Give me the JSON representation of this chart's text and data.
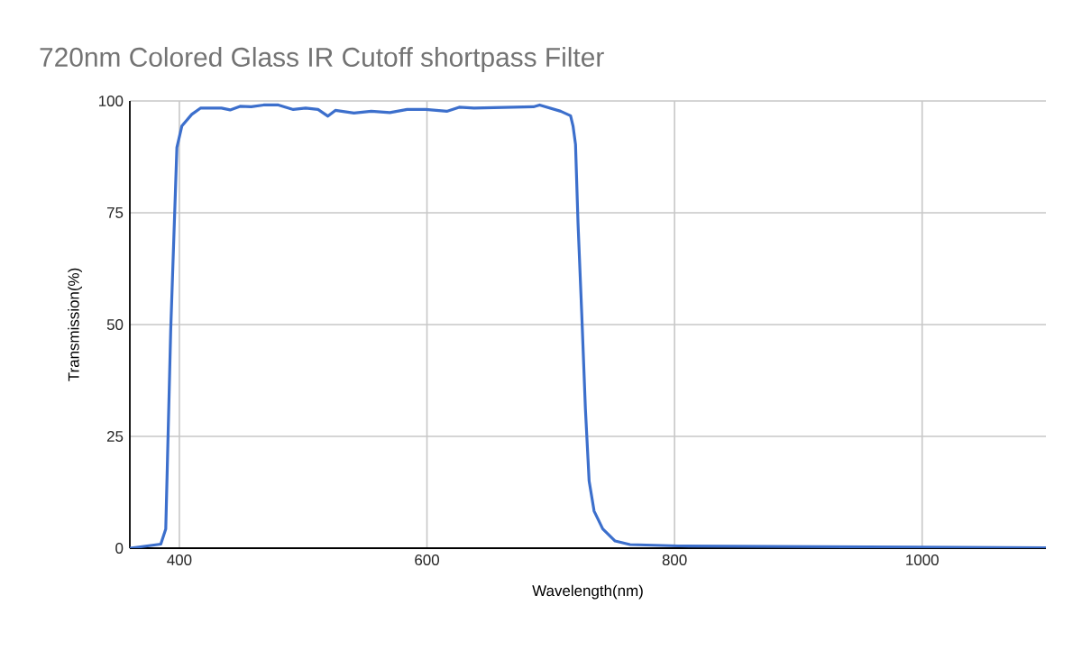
{
  "chart_data": {
    "type": "line",
    "title": "720nm Colored Glass IR Cutoff shortpass Filter",
    "xlabel": "Wavelength(nm)",
    "ylabel": "Transmission(%)",
    "xlim": [
      360,
      1100
    ],
    "xticks": [
      400,
      600,
      800,
      1000
    ],
    "ylim": [
      0,
      100
    ],
    "yticks": [
      0,
      25,
      50,
      75,
      100
    ],
    "grid": true,
    "marker": "none",
    "line_style": "solid",
    "series": [
      {
        "color": "#3c6fcc",
        "x": [
          360,
          385,
          389,
          393,
          398,
          402,
          410,
          417,
          434,
          441,
          449,
          458,
          468,
          480,
          492,
          502,
          512,
          520,
          526,
          541,
          555,
          570,
          584,
          599,
          616,
          626,
          638,
          686,
          691,
          708,
          716,
          718,
          720,
          722,
          725,
          728,
          731,
          735,
          742,
          752,
          764,
          803,
          955,
          1100
        ],
        "values": [
          0,
          0.9,
          4.3,
          48.7,
          89.6,
          94.4,
          97.0,
          98.4,
          98.4,
          98.0,
          98.8,
          98.7,
          99.1,
          99.1,
          98.1,
          98.4,
          98.1,
          96.6,
          97.9,
          97.3,
          97.7,
          97.4,
          98.1,
          98.1,
          97.7,
          98.6,
          98.4,
          98.7,
          99.1,
          97.7,
          96.7,
          94.4,
          90.3,
          72.8,
          52.6,
          31.1,
          15,
          8.3,
          4.3,
          1.6,
          0.8,
          0.5,
          0.3,
          0.1
        ]
      }
    ]
  }
}
